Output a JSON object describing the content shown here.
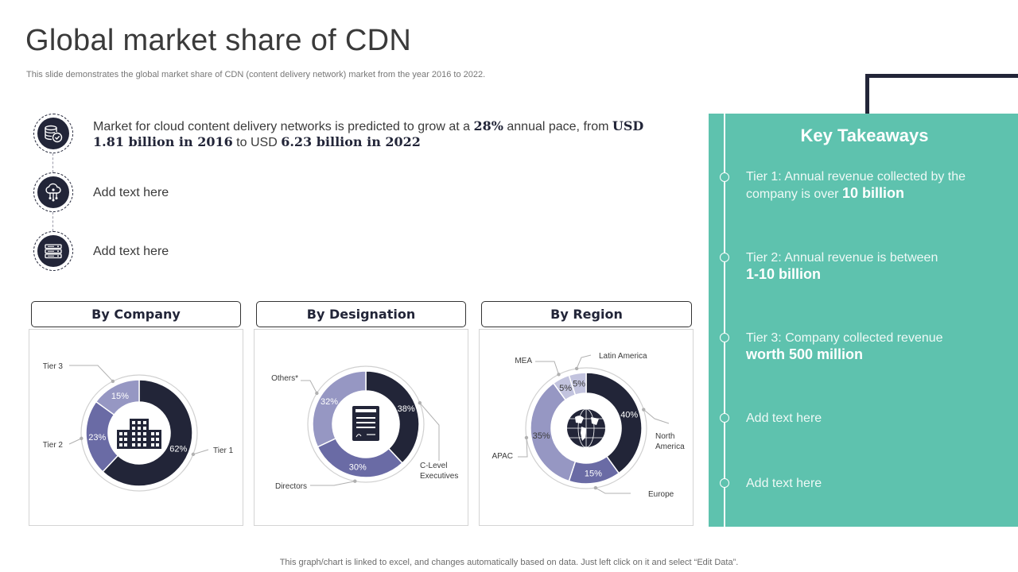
{
  "slide": {
    "title": "Global market share of CDN",
    "subtitle": "This slide demonstrates the global market share of CDN (content delivery network) market from the year 2016 to 2022.",
    "footnote": "This graph/chart is linked to excel, and changes automatically based on data. Just left click on it and select “Edit Data”."
  },
  "points": {
    "main": {
      "t1": "Market for cloud content delivery networks is predicted to grow at a ",
      "b1": "28%",
      "t2": " annual pace, from ",
      "b2": "USD 1.81 billion  in  2016",
      "t3": " to USD ",
      "b3": "6.23 billion  in  2022"
    },
    "second": "Add text here",
    "third": "Add text here",
    "icons": [
      "database-check-icon",
      "cloud-network-icon",
      "server-rack-icon"
    ]
  },
  "cards": {
    "company_title": "By Company",
    "designation_title": "By Designation",
    "region_title": "By Region"
  },
  "takeaways": {
    "title": "Key Takeaways",
    "items": [
      {
        "text": "Tier 1: Annual revenue collected by the company is over ",
        "bold": "10 billion"
      },
      {
        "text": "Tier 2: Annual revenue is between ",
        "bold": "1-10 billion"
      },
      {
        "text": "Tier 3: Company collected revenue ",
        "bold": "worth 500 million"
      },
      {
        "text": "Add text here",
        "bold": ""
      },
      {
        "text": "Add text here",
        "bold": ""
      }
    ]
  },
  "colors": {
    "navy": "#222538",
    "slate": "#6a6ba5",
    "lavender": "#9697c3",
    "light_lavender": "#c2c3de",
    "teal": "#5ec2ae"
  },
  "chart_data": [
    {
      "type": "pie",
      "title": "By Company",
      "categories": [
        "Tier 1",
        "Tier 2",
        "Tier 3"
      ],
      "values": [
        62,
        23,
        15
      ],
      "value_labels": [
        "62%",
        "23%",
        "15%"
      ],
      "center_icon": "office-building-icon"
    },
    {
      "type": "pie",
      "title": "By Designation",
      "categories": [
        "C-Level Executives",
        "Directors",
        "Others*"
      ],
      "values": [
        38,
        30,
        32
      ],
      "value_labels": [
        "38%",
        "30%",
        "32%"
      ],
      "center_icon": "document-icon"
    },
    {
      "type": "pie",
      "title": "By Region",
      "categories": [
        "North America",
        "Europe",
        "APAC",
        "MEA",
        "Latin America"
      ],
      "values": [
        40,
        15,
        35,
        5,
        5
      ],
      "value_labels": [
        "40%",
        "15%",
        "35%",
        "5%",
        "5%"
      ],
      "center_icon": "globe-icon"
    }
  ]
}
